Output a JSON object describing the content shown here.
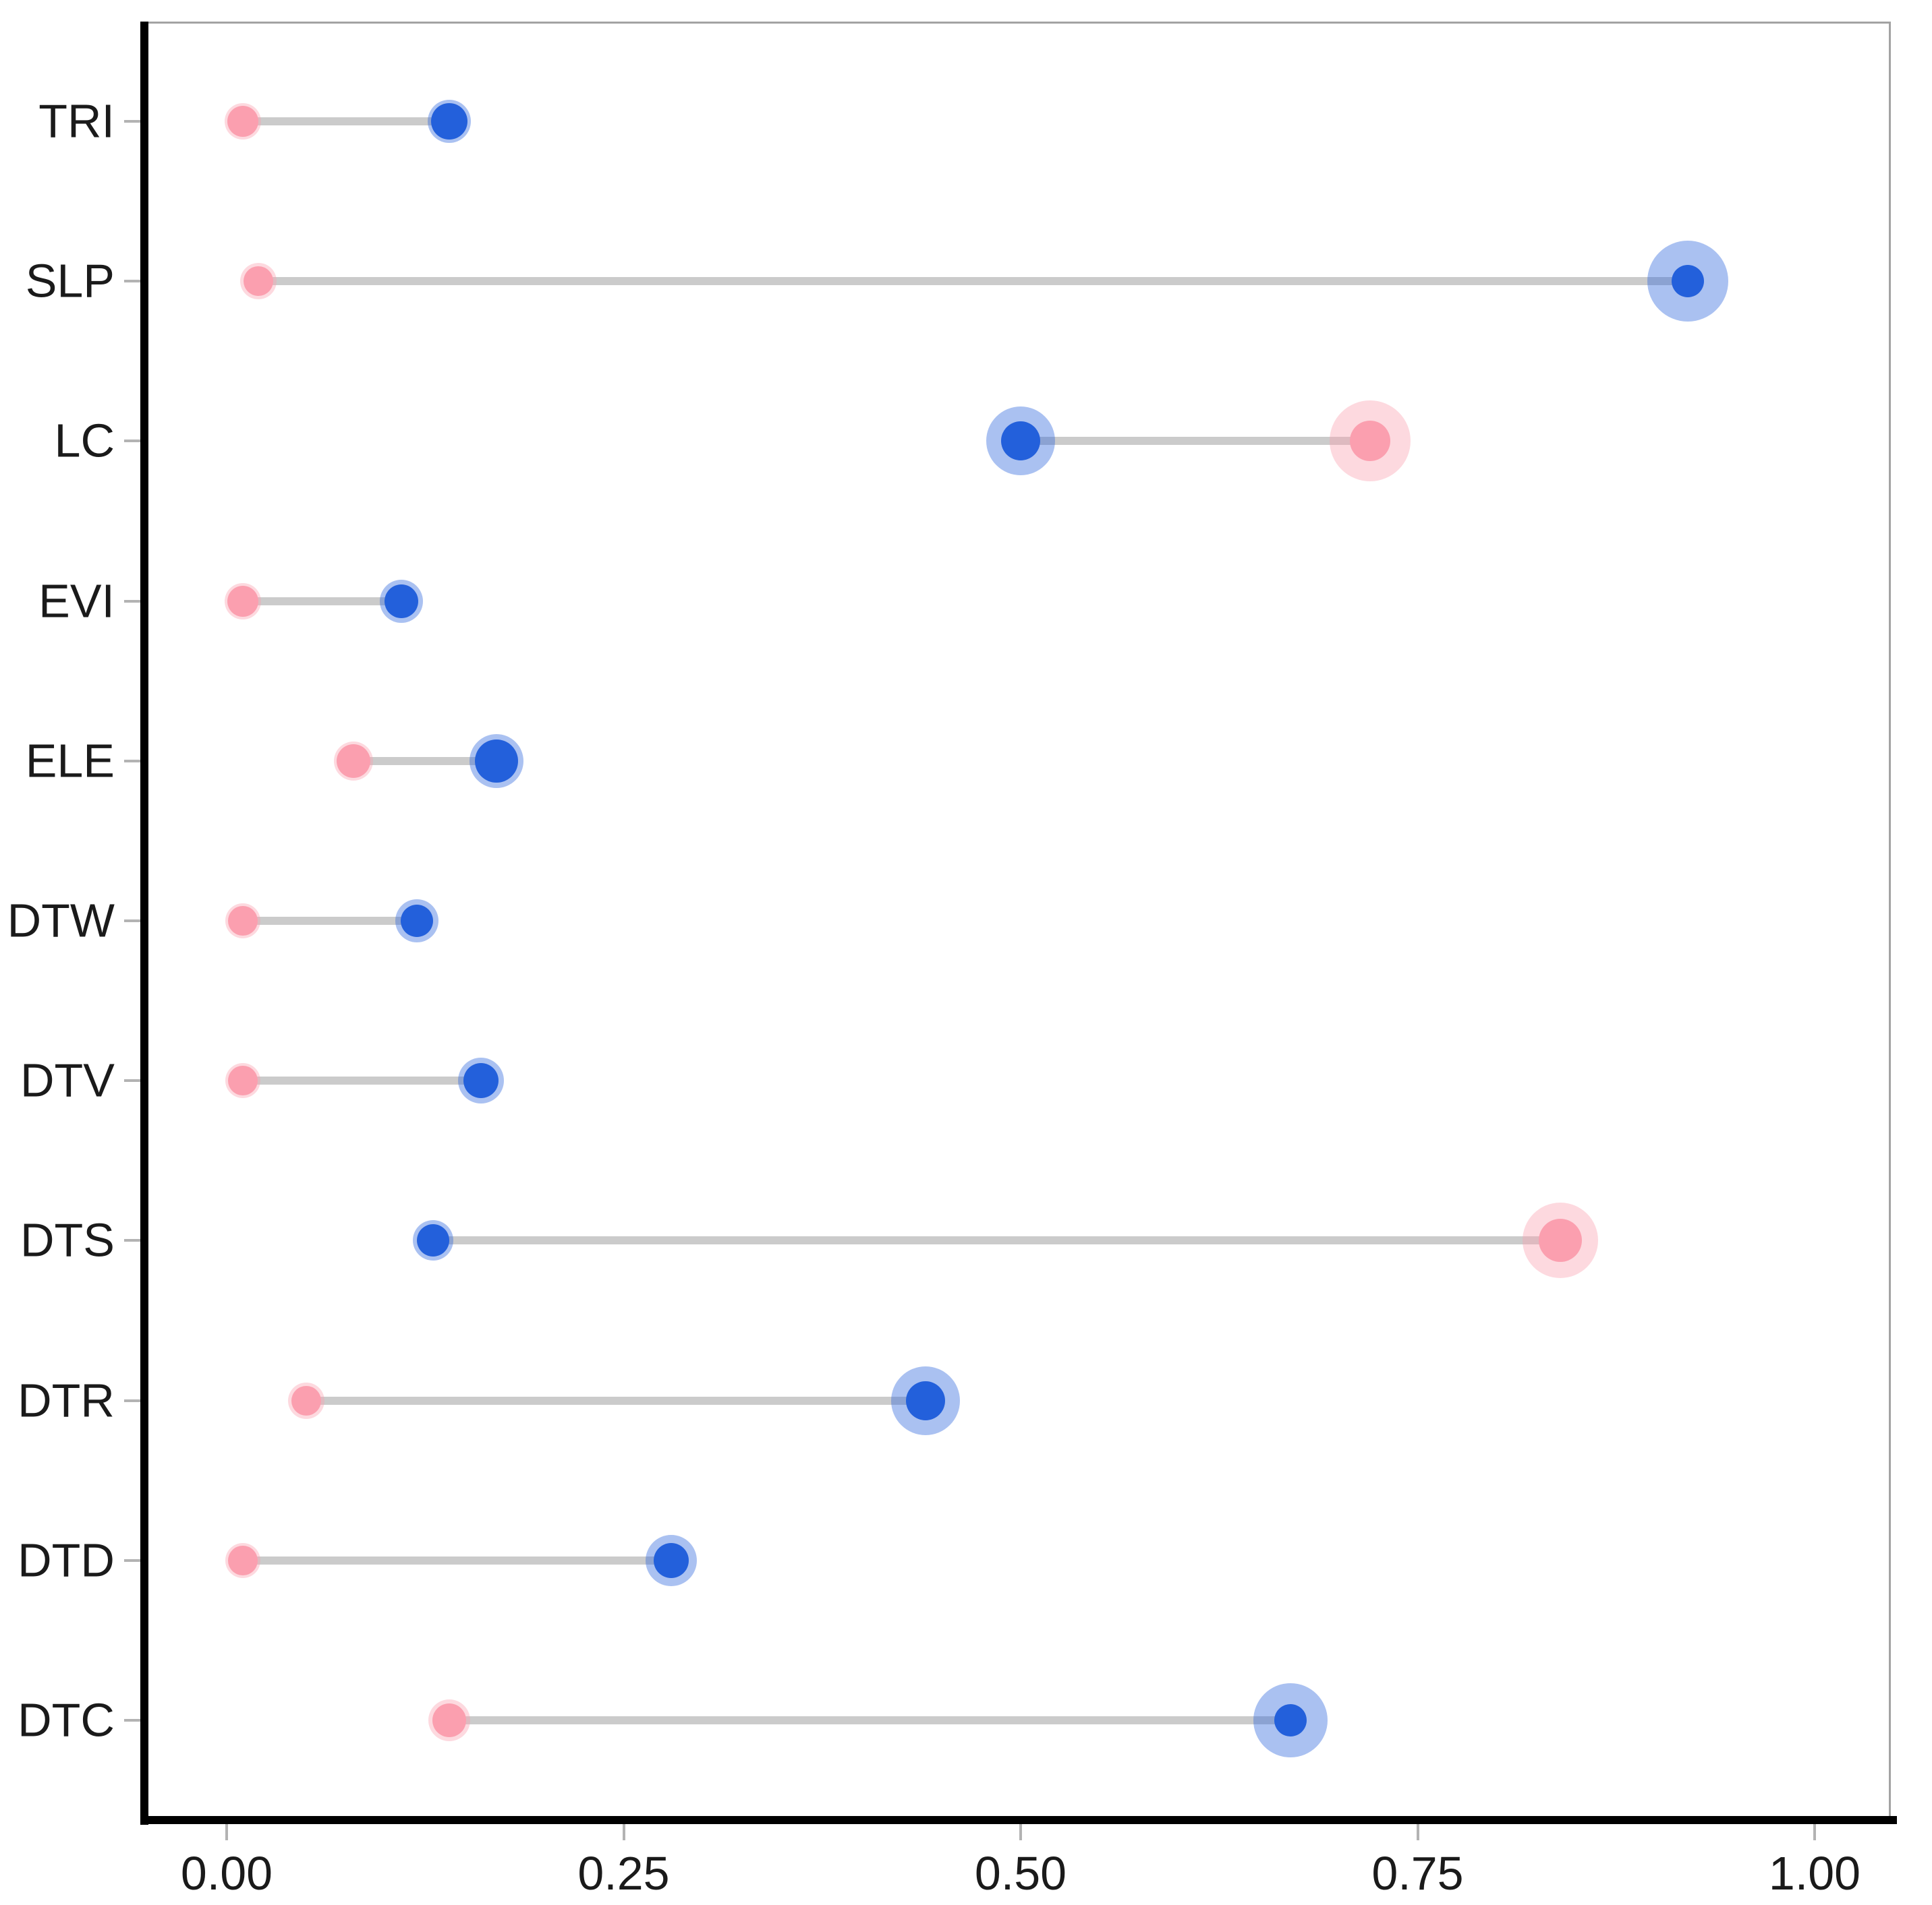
{
  "figure": {
    "background_color": "#ffffff",
    "text_color": "#1a1a1a"
  },
  "chart_data": {
    "type": "scatter",
    "subtype": "dumbbell-lollipop",
    "orientation": "horizontal",
    "title": "",
    "xlabel": "",
    "ylabel": "",
    "grid": "off",
    "legend": "none",
    "x_axis": {
      "min": 0.0,
      "max": 1.0,
      "tick_values": [
        0.0,
        0.25,
        0.5,
        0.75,
        1.0
      ],
      "tick_labels": [
        "0.00",
        "0.25",
        "0.50",
        "0.75",
        "1.00"
      ]
    },
    "categories": [
      "TRI",
      "SLP",
      "LC",
      "EVI",
      "ELE",
      "DTW",
      "DTV",
      "DTS",
      "DTR",
      "DTD",
      "DTC"
    ],
    "series": [
      {
        "name": "pink",
        "color": "#fb9faf",
        "halo_color": "rgba(251,159,175,0.40)",
        "values": [
          0.01,
          0.02,
          0.72,
          0.01,
          0.08,
          0.01,
          0.01,
          0.84,
          0.05,
          0.01,
          0.14
        ],
        "inner_radius": [
          23,
          22,
          30,
          23,
          25,
          22,
          22,
          32,
          22,
          22,
          25
        ],
        "halo_radius": [
          27,
          27,
          60,
          27,
          29,
          26,
          26,
          56,
          27,
          26,
          31
        ]
      },
      {
        "name": "blue",
        "color": "#2360db",
        "halo_color": "rgba(43,101,221,0.40)",
        "values": [
          0.14,
          0.92,
          0.5,
          0.11,
          0.17,
          0.12,
          0.16,
          0.13,
          0.44,
          0.28,
          0.67
        ],
        "inner_radius": [
          27,
          24,
          29,
          25,
          32,
          24,
          26,
          24,
          29,
          26,
          24
        ],
        "halo_radius": [
          32,
          60,
          51,
          32,
          40,
          32,
          34,
          30,
          51,
          38,
          55
        ]
      }
    ],
    "connector_color": "#cbcbcb",
    "axis_line_color": "#000000",
    "panel_border_color": "#a3a3a3",
    "tick_color": "#b3b3b3"
  }
}
